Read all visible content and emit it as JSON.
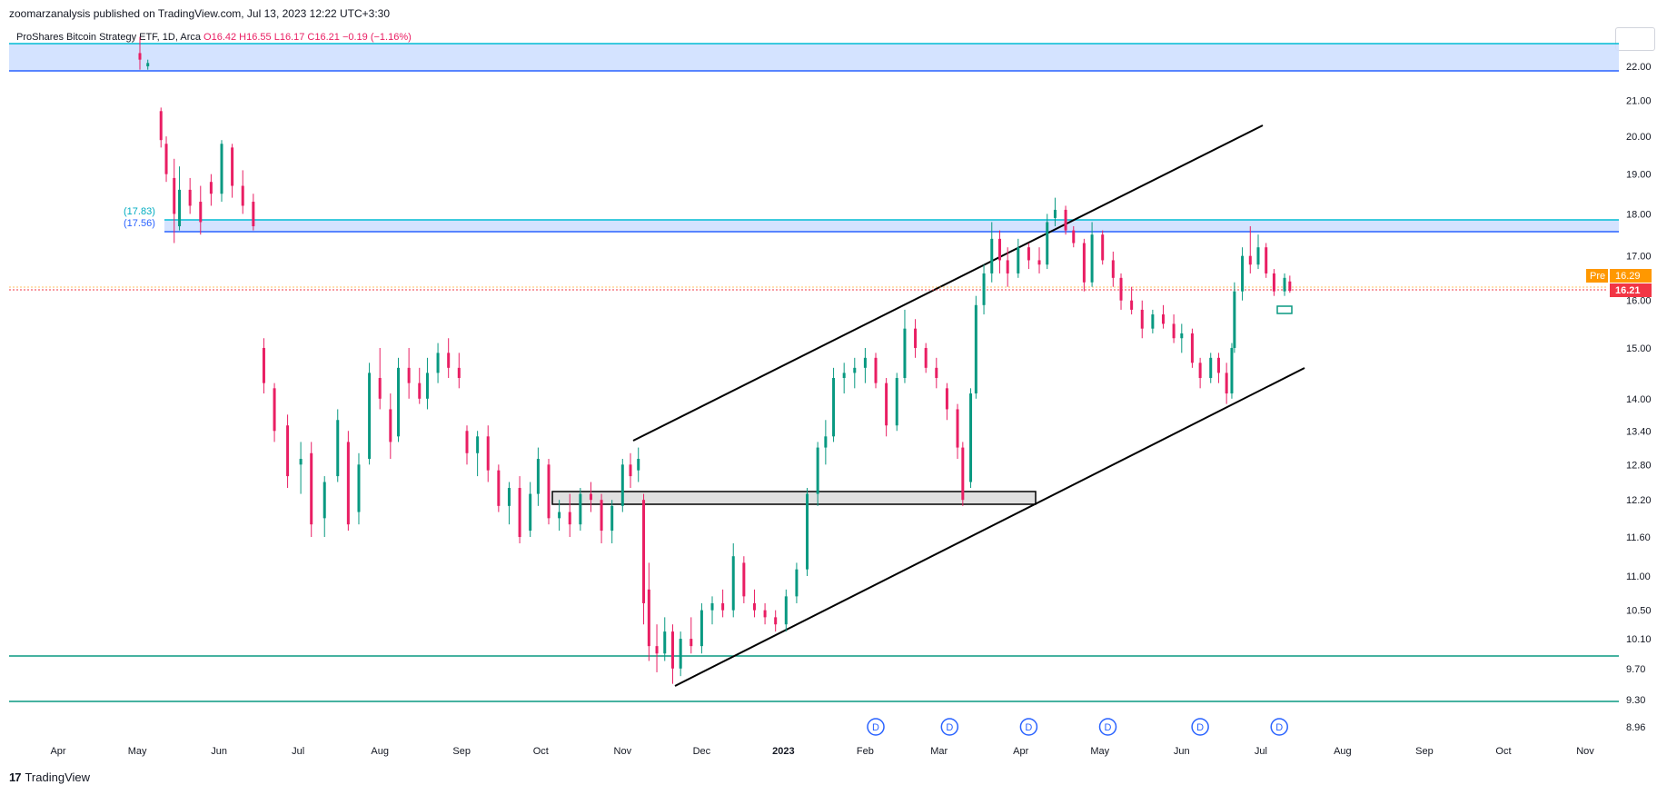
{
  "header": {
    "published_by": "zoomarzanalysis published on TradingView.com, Jul 13, 2023 12:22 UTC+3:30"
  },
  "legend": {
    "symbol": "ProShares Bitcoin Strategy ETF, 1D, Arca",
    "ohlc": "O16.42  H16.55  L16.17  C16.21  −0.19  (−1.16%)"
  },
  "footer": {
    "brand": "TradingView"
  },
  "colors": {
    "up": "#089981",
    "down": "#e91e63",
    "zone_fill": "#cfe0ff",
    "zone_line": "#00bcd4",
    "support_line": "#089981",
    "last_price": "#f23645",
    "pre_market": "#ff9800",
    "dividend": "#2962ff"
  },
  "chart_data": {
    "type": "candlestick",
    "y_scale": "log",
    "ylim": [
      8.96,
      22.6
    ],
    "y_ticks": [
      "22.00",
      "21.00",
      "20.00",
      "19.00",
      "18.00",
      "17.00",
      "16.00",
      "15.00",
      "14.00",
      "13.40",
      "12.80",
      "12.20",
      "11.60",
      "11.00",
      "10.50",
      "10.10",
      "9.70",
      "9.30",
      "8.96"
    ],
    "x_ticks": [
      "Apr",
      "May",
      "Jun",
      "Jul",
      "Aug",
      "Sep",
      "Oct",
      "Nov",
      "Dec",
      "2023",
      "Feb",
      "Mar",
      "Apr",
      "May",
      "Jun",
      "Jul",
      "Aug",
      "Sep",
      "Oct",
      "Nov"
    ],
    "x_ticks_bold": [
      "2023"
    ],
    "zone_labels": [
      "(17.83)",
      "(17.56)"
    ],
    "last_price": "16.21",
    "pre_label": "Pre",
    "pre_price": "16.29",
    "dividend_marker": "D",
    "dividends": [
      "Feb 2023",
      "Mar 2023",
      "Apr 2023",
      "May 2023",
      "Jun 2023",
      "Jul 2023"
    ],
    "candles": [
      {
        "d": "2022-05-02",
        "o": 22.4,
        "h": 22.9,
        "l": 21.9,
        "c": 22.2
      },
      {
        "d": "2022-05-05",
        "o": 22.0,
        "h": 22.2,
        "l": 21.9,
        "c": 22.1
      },
      {
        "d": "2022-05-10",
        "o": 20.7,
        "h": 20.8,
        "l": 19.7,
        "c": 19.9
      },
      {
        "d": "2022-05-12",
        "o": 19.8,
        "h": 20.0,
        "l": 18.8,
        "c": 19.0
      },
      {
        "d": "2022-05-15",
        "o": 18.9,
        "h": 19.4,
        "l": 17.3,
        "c": 18.0
      },
      {
        "d": "2022-05-17",
        "o": 17.7,
        "h": 19.2,
        "l": 17.6,
        "c": 18.6
      },
      {
        "d": "2022-05-21",
        "o": 18.6,
        "h": 18.9,
        "l": 18.0,
        "c": 18.2
      },
      {
        "d": "2022-05-25",
        "o": 18.3,
        "h": 18.7,
        "l": 17.5,
        "c": 17.8
      },
      {
        "d": "2022-05-29",
        "o": 18.8,
        "h": 19.0,
        "l": 18.2,
        "c": 18.5
      },
      {
        "d": "2022-06-02",
        "o": 18.5,
        "h": 19.9,
        "l": 18.3,
        "c": 19.8
      },
      {
        "d": "2022-06-06",
        "o": 19.7,
        "h": 19.8,
        "l": 18.4,
        "c": 18.7
      },
      {
        "d": "2022-06-10",
        "o": 18.7,
        "h": 19.1,
        "l": 18.0,
        "c": 18.2
      },
      {
        "d": "2022-06-14",
        "o": 18.3,
        "h": 18.5,
        "l": 17.6,
        "c": 17.7
      },
      {
        "d": "2022-06-18",
        "o": 15.0,
        "h": 15.2,
        "l": 14.1,
        "c": 14.3
      },
      {
        "d": "2022-06-22",
        "o": 14.2,
        "h": 14.3,
        "l": 13.2,
        "c": 13.4
      },
      {
        "d": "2022-06-27",
        "o": 13.5,
        "h": 13.7,
        "l": 12.4,
        "c": 12.6
      },
      {
        "d": "2022-07-02",
        "o": 12.8,
        "h": 13.2,
        "l": 12.3,
        "c": 12.9
      },
      {
        "d": "2022-07-06",
        "o": 13.0,
        "h": 13.2,
        "l": 11.6,
        "c": 11.8
      },
      {
        "d": "2022-07-11",
        "o": 11.9,
        "h": 12.6,
        "l": 11.6,
        "c": 12.5
      },
      {
        "d": "2022-07-16",
        "o": 12.6,
        "h": 13.8,
        "l": 12.5,
        "c": 13.6
      },
      {
        "d": "2022-07-20",
        "o": 13.2,
        "h": 13.4,
        "l": 11.7,
        "c": 11.8
      },
      {
        "d": "2022-07-24",
        "o": 12.0,
        "h": 13.0,
        "l": 11.8,
        "c": 12.8
      },
      {
        "d": "2022-07-28",
        "o": 12.9,
        "h": 14.7,
        "l": 12.8,
        "c": 14.5
      },
      {
        "d": "2022-08-01",
        "o": 14.4,
        "h": 15.0,
        "l": 13.8,
        "c": 14.0
      },
      {
        "d": "2022-08-05",
        "o": 13.8,
        "h": 14.1,
        "l": 12.9,
        "c": 13.2
      },
      {
        "d": "2022-08-08",
        "o": 13.3,
        "h": 14.8,
        "l": 13.2,
        "c": 14.6
      },
      {
        "d": "2022-08-12",
        "o": 14.6,
        "h": 15.0,
        "l": 14.0,
        "c": 14.3
      },
      {
        "d": "2022-08-16",
        "o": 14.3,
        "h": 14.6,
        "l": 13.9,
        "c": 14.0
      },
      {
        "d": "2022-08-19",
        "o": 14.0,
        "h": 14.8,
        "l": 13.8,
        "c": 14.5
      },
      {
        "d": "2022-08-23",
        "o": 14.5,
        "h": 15.1,
        "l": 14.3,
        "c": 14.9
      },
      {
        "d": "2022-08-27",
        "o": 14.9,
        "h": 15.2,
        "l": 14.4,
        "c": 14.6
      },
      {
        "d": "2022-08-31",
        "o": 14.6,
        "h": 14.9,
        "l": 14.2,
        "c": 14.4
      },
      {
        "d": "2022-09-03",
        "o": 13.4,
        "h": 13.5,
        "l": 12.8,
        "c": 13.0
      },
      {
        "d": "2022-09-07",
        "o": 13.0,
        "h": 13.4,
        "l": 12.6,
        "c": 13.3
      },
      {
        "d": "2022-09-11",
        "o": 13.3,
        "h": 13.5,
        "l": 12.5,
        "c": 12.7
      },
      {
        "d": "2022-09-15",
        "o": 12.7,
        "h": 12.8,
        "l": 12.0,
        "c": 12.1
      },
      {
        "d": "2022-09-19",
        "o": 12.1,
        "h": 12.5,
        "l": 11.8,
        "c": 12.4
      },
      {
        "d": "2022-09-23",
        "o": 12.4,
        "h": 12.6,
        "l": 11.5,
        "c": 11.6
      },
      {
        "d": "2022-09-27",
        "o": 11.7,
        "h": 12.5,
        "l": 11.6,
        "c": 12.3
      },
      {
        "d": "2022-09-30",
        "o": 12.3,
        "h": 13.1,
        "l": 12.1,
        "c": 12.9
      },
      {
        "d": "2022-10-04",
        "o": 12.8,
        "h": 12.9,
        "l": 11.8,
        "c": 11.9
      },
      {
        "d": "2022-10-08",
        "o": 11.9,
        "h": 12.2,
        "l": 11.7,
        "c": 12.0
      },
      {
        "d": "2022-10-12",
        "o": 12.0,
        "h": 12.3,
        "l": 11.6,
        "c": 11.8
      },
      {
        "d": "2022-10-16",
        "o": 11.8,
        "h": 12.4,
        "l": 11.7,
        "c": 12.3
      },
      {
        "d": "2022-10-20",
        "o": 12.3,
        "h": 12.5,
        "l": 12.0,
        "c": 12.2
      },
      {
        "d": "2022-10-24",
        "o": 12.2,
        "h": 12.3,
        "l": 11.5,
        "c": 11.7
      },
      {
        "d": "2022-10-28",
        "o": 11.7,
        "h": 12.2,
        "l": 11.5,
        "c": 12.1
      },
      {
        "d": "2022-11-01",
        "o": 12.1,
        "h": 12.9,
        "l": 12.0,
        "c": 12.8
      },
      {
        "d": "2022-11-04",
        "o": 12.8,
        "h": 13.0,
        "l": 12.4,
        "c": 12.6
      },
      {
        "d": "2022-11-07",
        "o": 12.7,
        "h": 13.1,
        "l": 12.5,
        "c": 12.9
      },
      {
        "d": "2022-11-09",
        "o": 12.2,
        "h": 12.3,
        "l": 10.3,
        "c": 10.6
      },
      {
        "d": "2022-11-11",
        "o": 10.8,
        "h": 11.2,
        "l": 9.8,
        "c": 10.0
      },
      {
        "d": "2022-11-14",
        "o": 10.0,
        "h": 10.3,
        "l": 9.65,
        "c": 9.9
      },
      {
        "d": "2022-11-17",
        "o": 9.9,
        "h": 10.4,
        "l": 9.8,
        "c": 10.2
      },
      {
        "d": "2022-11-20",
        "o": 10.2,
        "h": 10.3,
        "l": 9.5,
        "c": 9.7
      },
      {
        "d": "2022-11-23",
        "o": 9.7,
        "h": 10.2,
        "l": 9.6,
        "c": 10.1
      },
      {
        "d": "2022-11-27",
        "o": 10.1,
        "h": 10.4,
        "l": 9.9,
        "c": 10.0
      },
      {
        "d": "2022-12-01",
        "o": 10.0,
        "h": 10.6,
        "l": 9.9,
        "c": 10.5
      },
      {
        "d": "2022-12-05",
        "o": 10.5,
        "h": 10.7,
        "l": 10.3,
        "c": 10.6
      },
      {
        "d": "2022-12-09",
        "o": 10.6,
        "h": 10.8,
        "l": 10.4,
        "c": 10.5
      },
      {
        "d": "2022-12-13",
        "o": 10.5,
        "h": 11.5,
        "l": 10.4,
        "c": 11.3
      },
      {
        "d": "2022-12-17",
        "o": 11.2,
        "h": 11.3,
        "l": 10.6,
        "c": 10.7
      },
      {
        "d": "2022-12-21",
        "o": 10.6,
        "h": 10.8,
        "l": 10.4,
        "c": 10.5
      },
      {
        "d": "2022-12-25",
        "o": 10.5,
        "h": 10.6,
        "l": 10.3,
        "c": 10.4
      },
      {
        "d": "2022-12-29",
        "o": 10.4,
        "h": 10.5,
        "l": 10.2,
        "c": 10.3
      },
      {
        "d": "2023-01-02",
        "o": 10.3,
        "h": 10.8,
        "l": 10.2,
        "c": 10.7
      },
      {
        "d": "2023-01-06",
        "o": 10.7,
        "h": 11.2,
        "l": 10.6,
        "c": 11.1
      },
      {
        "d": "2023-01-10",
        "o": 11.1,
        "h": 12.4,
        "l": 11.0,
        "c": 12.3
      },
      {
        "d": "2023-01-14",
        "o": 12.3,
        "h": 13.2,
        "l": 12.1,
        "c": 13.1
      },
      {
        "d": "2023-01-17",
        "o": 13.1,
        "h": 13.6,
        "l": 12.8,
        "c": 13.3
      },
      {
        "d": "2023-01-20",
        "o": 13.3,
        "h": 14.6,
        "l": 13.2,
        "c": 14.4
      },
      {
        "d": "2023-01-24",
        "o": 14.4,
        "h": 14.7,
        "l": 14.1,
        "c": 14.5
      },
      {
        "d": "2023-01-28",
        "o": 14.5,
        "h": 14.8,
        "l": 14.2,
        "c": 14.6
      },
      {
        "d": "2023-02-01",
        "o": 14.6,
        "h": 15.0,
        "l": 14.3,
        "c": 14.8
      },
      {
        "d": "2023-02-05",
        "o": 14.8,
        "h": 14.9,
        "l": 14.2,
        "c": 14.3
      },
      {
        "d": "2023-02-09",
        "o": 14.3,
        "h": 14.4,
        "l": 13.3,
        "c": 13.5
      },
      {
        "d": "2023-02-13",
        "o": 13.5,
        "h": 14.5,
        "l": 13.4,
        "c": 14.4
      },
      {
        "d": "2023-02-16",
        "o": 14.4,
        "h": 15.8,
        "l": 14.3,
        "c": 15.4
      },
      {
        "d": "2023-02-20",
        "o": 15.4,
        "h": 15.6,
        "l": 14.8,
        "c": 15.0
      },
      {
        "d": "2023-02-24",
        "o": 15.0,
        "h": 15.1,
        "l": 14.5,
        "c": 14.6
      },
      {
        "d": "2023-02-28",
        "o": 14.6,
        "h": 14.8,
        "l": 14.2,
        "c": 14.4
      },
      {
        "d": "2023-03-04",
        "o": 14.2,
        "h": 14.3,
        "l": 13.6,
        "c": 13.8
      },
      {
        "d": "2023-03-08",
        "o": 13.8,
        "h": 13.9,
        "l": 12.9,
        "c": 13.1
      },
      {
        "d": "2023-03-10",
        "o": 13.1,
        "h": 13.2,
        "l": 12.1,
        "c": 12.2
      },
      {
        "d": "2023-03-13",
        "o": 12.5,
        "h": 14.2,
        "l": 12.4,
        "c": 14.1
      },
      {
        "d": "2023-03-15",
        "o": 14.1,
        "h": 16.1,
        "l": 14.0,
        "c": 15.9
      },
      {
        "d": "2023-03-18",
        "o": 15.9,
        "h": 16.8,
        "l": 15.7,
        "c": 16.6
      },
      {
        "d": "2023-03-21",
        "o": 16.6,
        "h": 17.8,
        "l": 16.4,
        "c": 17.4
      },
      {
        "d": "2023-03-24",
        "o": 17.4,
        "h": 17.6,
        "l": 16.6,
        "c": 16.9
      },
      {
        "d": "2023-03-27",
        "o": 16.9,
        "h": 17.2,
        "l": 16.3,
        "c": 16.6
      },
      {
        "d": "2023-03-31",
        "o": 16.6,
        "h": 17.4,
        "l": 16.5,
        "c": 17.2
      },
      {
        "d": "2023-04-04",
        "o": 17.2,
        "h": 17.3,
        "l": 16.7,
        "c": 16.9
      },
      {
        "d": "2023-04-08",
        "o": 16.9,
        "h": 17.2,
        "l": 16.6,
        "c": 16.8
      },
      {
        "d": "2023-04-11",
        "o": 16.8,
        "h": 18.0,
        "l": 16.7,
        "c": 17.8
      },
      {
        "d": "2023-04-14",
        "o": 17.9,
        "h": 18.4,
        "l": 17.7,
        "c": 18.1
      },
      {
        "d": "2023-04-18",
        "o": 18.1,
        "h": 18.2,
        "l": 17.5,
        "c": 17.6
      },
      {
        "d": "2023-04-21",
        "o": 17.6,
        "h": 17.7,
        "l": 17.2,
        "c": 17.3
      },
      {
        "d": "2023-04-25",
        "o": 17.3,
        "h": 17.4,
        "l": 16.2,
        "c": 16.4
      },
      {
        "d": "2023-04-28",
        "o": 16.4,
        "h": 17.8,
        "l": 16.3,
        "c": 17.5
      },
      {
        "d": "2023-05-02",
        "o": 17.5,
        "h": 17.6,
        "l": 16.8,
        "c": 16.9
      },
      {
        "d": "2023-05-06",
        "o": 16.9,
        "h": 17.1,
        "l": 16.3,
        "c": 16.5
      },
      {
        "d": "2023-05-09",
        "o": 16.5,
        "h": 16.6,
        "l": 15.8,
        "c": 16.0
      },
      {
        "d": "2023-05-13",
        "o": 16.0,
        "h": 16.3,
        "l": 15.7,
        "c": 15.8
      },
      {
        "d": "2023-05-17",
        "o": 15.8,
        "h": 16.0,
        "l": 15.2,
        "c": 15.4
      },
      {
        "d": "2023-05-21",
        "o": 15.4,
        "h": 15.8,
        "l": 15.3,
        "c": 15.7
      },
      {
        "d": "2023-05-25",
        "o": 15.7,
        "h": 15.9,
        "l": 15.4,
        "c": 15.5
      },
      {
        "d": "2023-05-29",
        "o": 15.5,
        "h": 15.7,
        "l": 15.1,
        "c": 15.2
      },
      {
        "d": "2023-06-01",
        "o": 15.2,
        "h": 15.5,
        "l": 14.9,
        "c": 15.3
      },
      {
        "d": "2023-06-05",
        "o": 15.3,
        "h": 15.4,
        "l": 14.6,
        "c": 14.7
      },
      {
        "d": "2023-06-08",
        "o": 14.7,
        "h": 14.8,
        "l": 14.2,
        "c": 14.4
      },
      {
        "d": "2023-06-12",
        "o": 14.4,
        "h": 14.9,
        "l": 14.3,
        "c": 14.8
      },
      {
        "d": "2023-06-15",
        "o": 14.8,
        "h": 14.9,
        "l": 14.3,
        "c": 14.5
      },
      {
        "d": "2023-06-18",
        "o": 14.5,
        "h": 14.7,
        "l": 13.9,
        "c": 14.1
      },
      {
        "d": "2023-06-20",
        "o": 14.1,
        "h": 15.1,
        "l": 14.0,
        "c": 15.0
      },
      {
        "d": "2023-06-21",
        "o": 15.0,
        "h": 16.4,
        "l": 14.9,
        "c": 16.2
      },
      {
        "d": "2023-06-24",
        "o": 16.2,
        "h": 17.2,
        "l": 16.0,
        "c": 17.0
      },
      {
        "d": "2023-06-27",
        "o": 17.0,
        "h": 17.7,
        "l": 16.6,
        "c": 16.8
      },
      {
        "d": "2023-06-30",
        "o": 16.8,
        "h": 17.5,
        "l": 16.7,
        "c": 17.2
      },
      {
        "d": "2023-07-03",
        "o": 17.2,
        "h": 17.3,
        "l": 16.5,
        "c": 16.6
      },
      {
        "d": "2023-07-06",
        "o": 16.6,
        "h": 16.7,
        "l": 16.1,
        "c": 16.2
      },
      {
        "d": "2023-07-10",
        "o": 16.2,
        "h": 16.6,
        "l": 16.1,
        "c": 16.5
      },
      {
        "d": "2023-07-12",
        "o": 16.42,
        "h": 16.55,
        "l": 16.17,
        "c": 16.21
      }
    ]
  }
}
